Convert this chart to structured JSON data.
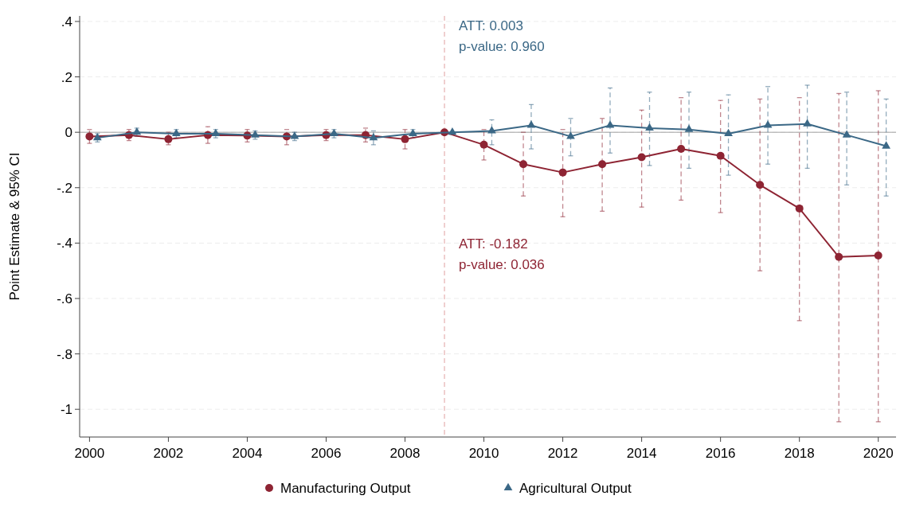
{
  "chart_data": {
    "type": "line",
    "ylabel": "Point Estimate & 95% CI",
    "xlim": [
      1999.75,
      2020.45
    ],
    "xticks": [
      2000,
      2002,
      2004,
      2006,
      2008,
      2010,
      2012,
      2014,
      2016,
      2018,
      2020
    ],
    "ylim": [
      -1.1,
      0.42
    ],
    "yticks": [
      {
        "value": 0.4,
        "label": ".4"
      },
      {
        "value": 0.2,
        "label": ".2"
      },
      0,
      {
        "value": -0.2,
        "label": "-.2"
      },
      {
        "value": -0.4,
        "label": "-.4"
      },
      {
        "value": -0.6,
        "label": "-.6"
      },
      {
        "value": -0.8,
        "label": "-.8"
      },
      -1
    ],
    "grid": "y",
    "legend": "bottom",
    "line_style": "solid",
    "ref_lines": [
      {
        "axis": "y",
        "value": 0,
        "color": "#a0a0a0",
        "line_style": "solid"
      },
      {
        "axis": "x",
        "value": 2009,
        "color": "#e0a0a0",
        "line_style": "dashed"
      }
    ],
    "annotations": [
      "ATT: 0.003",
      "p-value: 0.960",
      "ATT: -0.182",
      "p-value: 0.036"
    ],
    "series": [
      {
        "name": "Manufacturing Output",
        "color": "#8e2433",
        "marker": "circle",
        "x": [
          2000,
          2001,
          2002,
          2003,
          2004,
          2005,
          2006,
          2007,
          2008,
          2009,
          2010,
          2011,
          2012,
          2013,
          2014,
          2015,
          2016,
          2017,
          2018,
          2019,
          2020
        ],
        "values": [
          -0.015,
          -0.01,
          -0.025,
          -0.01,
          -0.012,
          -0.015,
          -0.01,
          -0.01,
          -0.025,
          0,
          -0.045,
          -0.115,
          -0.145,
          -0.115,
          -0.09,
          -0.06,
          -0.085,
          -0.19,
          -0.275,
          -0.45,
          -0.445
        ],
        "errors": [
          [
            -0.04,
            0.01
          ],
          [
            -0.03,
            0.01
          ],
          [
            -0.045,
            0
          ],
          [
            -0.04,
            0.02
          ],
          [
            -0.035,
            0.01
          ],
          [
            -0.045,
            0.01
          ],
          [
            -0.03,
            0.01
          ],
          [
            -0.035,
            0.015
          ],
          [
            -0.06,
            0.01
          ],
          null,
          [
            -0.1,
            0.01
          ],
          [
            -0.23,
            0
          ],
          [
            -0.305,
            0.01
          ],
          [
            -0.285,
            0.05
          ],
          [
            -0.27,
            0.08
          ],
          [
            -0.245,
            0.125
          ],
          [
            -0.29,
            0.115
          ],
          [
            -0.5,
            0.12
          ],
          [
            -0.68,
            0.125
          ],
          [
            -1.045,
            0.14
          ],
          [
            -1.045,
            0.15
          ]
        ]
      },
      {
        "name": "Agricultural Output",
        "color": "#3b6886",
        "marker": "triangle",
        "x": [
          2000.2,
          2001.2,
          2002.2,
          2003.2,
          2004.2,
          2005.2,
          2006.2,
          2007.2,
          2008.2,
          2009.2,
          2010.2,
          2011.2,
          2012.2,
          2013.2,
          2014.2,
          2015.2,
          2016.2,
          2017.2,
          2018.2,
          2019.2,
          2020.2
        ],
        "values": [
          -0.02,
          0,
          -0.005,
          -0.005,
          -0.01,
          -0.015,
          -0.005,
          -0.02,
          -0.005,
          0,
          0.005,
          0.025,
          -0.015,
          0.025,
          0.015,
          0.01,
          -0.005,
          0.025,
          0.03,
          -0.01,
          -0.05
        ],
        "errors": [
          [
            -0.035,
            -0.005
          ],
          [
            -0.015,
            0.015
          ],
          [
            -0.02,
            0.01
          ],
          [
            -0.02,
            0.01
          ],
          [
            -0.025,
            0.005
          ],
          [
            -0.03,
            0
          ],
          [
            -0.02,
            0.01
          ],
          [
            -0.045,
            0.005
          ],
          [
            -0.02,
            0.01
          ],
          null,
          [
            -0.045,
            0.045
          ],
          [
            -0.06,
            0.1
          ],
          [
            -0.085,
            0.05
          ],
          [
            -0.075,
            0.16
          ],
          [
            -0.12,
            0.145
          ],
          [
            -0.13,
            0.145
          ],
          [
            -0.155,
            0.135
          ],
          [
            -0.115,
            0.165
          ],
          [
            -0.13,
            0.17
          ],
          [
            -0.19,
            0.145
          ],
          [
            -0.23,
            0.12
          ]
        ]
      }
    ]
  }
}
